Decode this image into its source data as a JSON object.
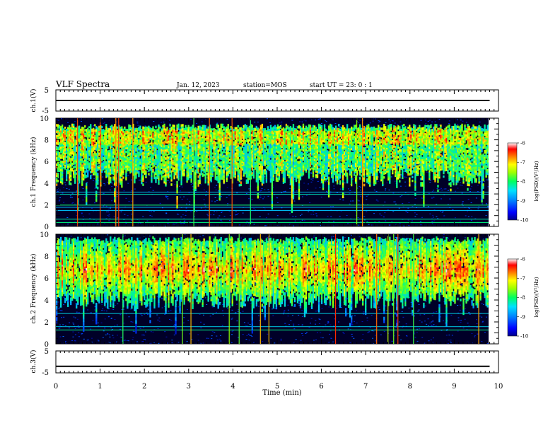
{
  "header": {
    "title": "VLF Spectra",
    "date": "Jan. 12, 2023",
    "station": "station=MOS",
    "start": "start UT =  23: 0  : 1"
  },
  "chart_data": [
    {
      "type": "line",
      "panel": "ch1-waveform",
      "ylabel": "ch.1(V)",
      "yticks": [
        "5",
        "-5"
      ],
      "ylim": [
        -5,
        5
      ],
      "xlim": [
        0,
        10
      ],
      "series": [
        {
          "x": [
            0,
            9.8
          ],
          "values": [
            0,
            0
          ]
        }
      ]
    },
    {
      "type": "heatmap",
      "panel": "ch1-spectrogram",
      "ylabel": "ch.1 Frequency (kHz)",
      "ylim": [
        0,
        10
      ],
      "yticks": [
        "0",
        "2",
        "4",
        "6",
        "8",
        "10"
      ],
      "xlim": [
        0,
        9.8
      ],
      "band_khz": [
        4.5,
        9.5
      ],
      "tonal_lines_khz": [
        0.4,
        0.7,
        1.5,
        1.8,
        2.0,
        3.0,
        3.2,
        5.8
      ],
      "colorbar": {
        "range": [
          -10,
          -6
        ],
        "ticks": [
          "-6",
          "-7",
          "-8",
          "-9",
          "-10"
        ],
        "label": "log(PSD)(V²/Hz)"
      }
    },
    {
      "type": "heatmap",
      "panel": "ch2-spectrogram",
      "ylabel": "ch.2 Frequency (kHz)",
      "ylim": [
        0,
        10
      ],
      "yticks": [
        "0",
        "2",
        "4",
        "6",
        "8",
        "10"
      ],
      "xlim": [
        0,
        9.8
      ],
      "band_khz": [
        4,
        9.8
      ],
      "peak_khz": 6.8,
      "tonal_lines_khz": [
        1.3,
        1.6,
        2.8
      ],
      "colorbar": {
        "range": [
          -10,
          -6
        ],
        "ticks": [
          "-6",
          "-7",
          "-8",
          "-9",
          "-10"
        ],
        "label": "log(PSD)(V²/Hz)"
      }
    },
    {
      "type": "line",
      "panel": "ch3-waveform",
      "ylabel": "ch.3(V)",
      "yticks": [
        "5",
        "-5"
      ],
      "ylim": [
        -5,
        5
      ],
      "xlim": [
        0,
        10
      ],
      "xlabel": "Time  (min)",
      "xticks": [
        "0",
        "1",
        "2",
        "3",
        "4",
        "5",
        "6",
        "7",
        "8",
        "9",
        "10"
      ],
      "series": [
        {
          "x": [
            0,
            9.8
          ],
          "values": [
            -2,
            -2
          ]
        }
      ]
    }
  ],
  "colors": {
    "background": "#000033",
    "cmap": [
      "#000088",
      "#0000ff",
      "#0066ff",
      "#00ccff",
      "#00ff99",
      "#66ff00",
      "#ffff00",
      "#ff9900",
      "#ff0000",
      "#ffffff"
    ]
  }
}
